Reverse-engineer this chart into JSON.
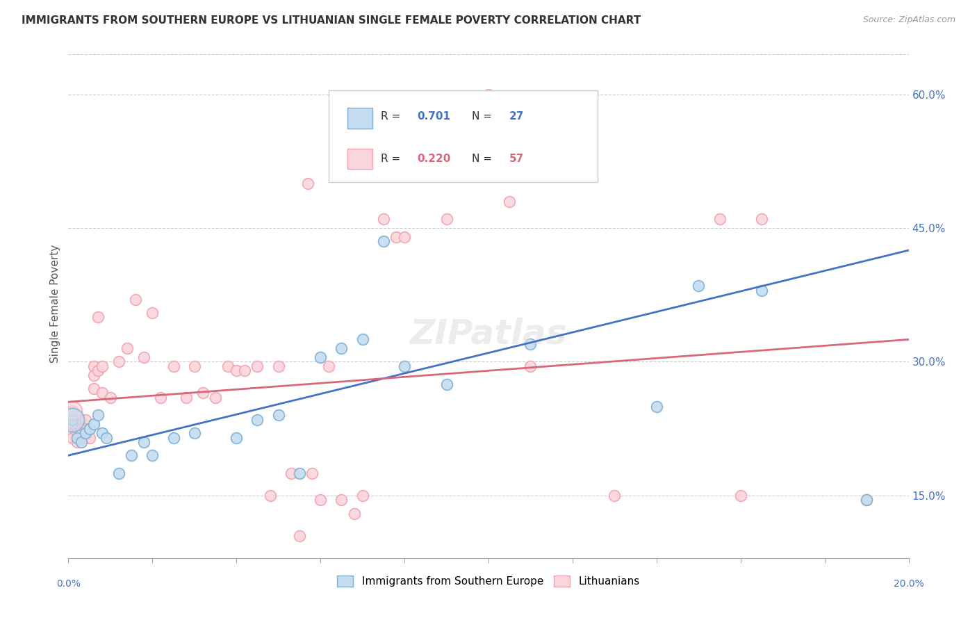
{
  "title": "IMMIGRANTS FROM SOUTHERN EUROPE VS LITHUANIAN SINGLE FEMALE POVERTY CORRELATION CHART",
  "source": "Source: ZipAtlas.com",
  "ylabel": "Single Female Poverty",
  "ylabel_right_ticks": [
    15.0,
    30.0,
    45.0,
    60.0
  ],
  "xlim": [
    0.0,
    0.2
  ],
  "ylim": [
    0.08,
    0.65
  ],
  "legend_label_blue": "Immigrants from Southern Europe",
  "legend_label_pink": "Lithuanians",
  "color_blue": "#7BAFD4",
  "color_blue_face": "#C5DCF0",
  "color_pink": "#F4A0B0",
  "color_pink_face": "#FAD5DC",
  "line_blue": "#4472C4",
  "line_pink": "#D9677A",
  "watermark": "ZIPatlas",
  "blue_points": [
    [
      0.001,
      0.235
    ],
    [
      0.002,
      0.215
    ],
    [
      0.003,
      0.21
    ],
    [
      0.004,
      0.22
    ],
    [
      0.005,
      0.225
    ],
    [
      0.006,
      0.23
    ],
    [
      0.007,
      0.24
    ],
    [
      0.008,
      0.22
    ],
    [
      0.009,
      0.215
    ],
    [
      0.012,
      0.175
    ],
    [
      0.015,
      0.195
    ],
    [
      0.018,
      0.21
    ],
    [
      0.02,
      0.195
    ],
    [
      0.025,
      0.215
    ],
    [
      0.03,
      0.22
    ],
    [
      0.04,
      0.215
    ],
    [
      0.045,
      0.235
    ],
    [
      0.05,
      0.24
    ],
    [
      0.055,
      0.175
    ],
    [
      0.06,
      0.305
    ],
    [
      0.065,
      0.315
    ],
    [
      0.07,
      0.325
    ],
    [
      0.075,
      0.435
    ],
    [
      0.08,
      0.295
    ],
    [
      0.09,
      0.275
    ],
    [
      0.11,
      0.32
    ],
    [
      0.14,
      0.25
    ],
    [
      0.15,
      0.385
    ],
    [
      0.165,
      0.38
    ],
    [
      0.19,
      0.145
    ]
  ],
  "pink_points": [
    [
      0.001,
      0.245
    ],
    [
      0.001,
      0.23
    ],
    [
      0.001,
      0.22
    ],
    [
      0.001,
      0.215
    ],
    [
      0.002,
      0.225
    ],
    [
      0.002,
      0.22
    ],
    [
      0.002,
      0.215
    ],
    [
      0.002,
      0.21
    ],
    [
      0.003,
      0.235
    ],
    [
      0.003,
      0.225
    ],
    [
      0.003,
      0.22
    ],
    [
      0.004,
      0.235
    ],
    [
      0.004,
      0.225
    ],
    [
      0.004,
      0.215
    ],
    [
      0.005,
      0.225
    ],
    [
      0.005,
      0.215
    ],
    [
      0.006,
      0.295
    ],
    [
      0.006,
      0.285
    ],
    [
      0.006,
      0.27
    ],
    [
      0.007,
      0.35
    ],
    [
      0.007,
      0.29
    ],
    [
      0.008,
      0.295
    ],
    [
      0.008,
      0.265
    ],
    [
      0.01,
      0.26
    ],
    [
      0.012,
      0.3
    ],
    [
      0.014,
      0.315
    ],
    [
      0.016,
      0.37
    ],
    [
      0.018,
      0.305
    ],
    [
      0.02,
      0.355
    ],
    [
      0.022,
      0.26
    ],
    [
      0.025,
      0.295
    ],
    [
      0.028,
      0.26
    ],
    [
      0.03,
      0.295
    ],
    [
      0.032,
      0.265
    ],
    [
      0.035,
      0.26
    ],
    [
      0.038,
      0.295
    ],
    [
      0.04,
      0.29
    ],
    [
      0.042,
      0.29
    ],
    [
      0.045,
      0.295
    ],
    [
      0.048,
      0.15
    ],
    [
      0.05,
      0.295
    ],
    [
      0.053,
      0.175
    ],
    [
      0.055,
      0.105
    ],
    [
      0.057,
      0.5
    ],
    [
      0.058,
      0.175
    ],
    [
      0.06,
      0.145
    ],
    [
      0.062,
      0.295
    ],
    [
      0.065,
      0.145
    ],
    [
      0.068,
      0.13
    ],
    [
      0.07,
      0.15
    ],
    [
      0.075,
      0.46
    ],
    [
      0.078,
      0.44
    ],
    [
      0.08,
      0.44
    ],
    [
      0.09,
      0.46
    ],
    [
      0.1,
      0.6
    ],
    [
      0.105,
      0.48
    ],
    [
      0.11,
      0.295
    ],
    [
      0.13,
      0.15
    ],
    [
      0.155,
      0.46
    ],
    [
      0.16,
      0.15
    ],
    [
      0.165,
      0.46
    ],
    [
      0.19,
      0.145
    ]
  ]
}
